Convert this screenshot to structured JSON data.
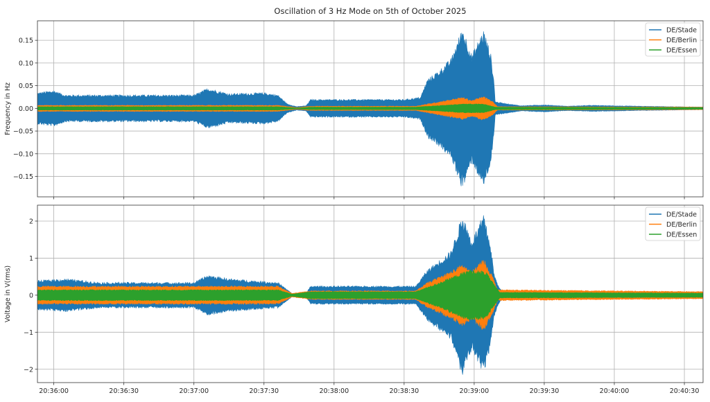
{
  "chart_data": [
    {
      "type": "line",
      "title": "Oscillation of 3 Hz Mode on 5th of October 2025",
      "xlabel": "",
      "ylabel": "Frequency in Hz",
      "x_unit": "seconds after 20:36:00",
      "xlim": [
        -7,
        278
      ],
      "ylim": [
        -0.195,
        0.193
      ],
      "grid": true,
      "legend_position": "top-right",
      "xticks": [
        0,
        30,
        60,
        90,
        120,
        150,
        180,
        210,
        240,
        270
      ],
      "yticks": [
        -0.15,
        -0.1,
        -0.05,
        0.0,
        0.05,
        0.1,
        0.15
      ],
      "ytick_labels": [
        "−0.15",
        "−0.10",
        "−0.05",
        "0.00",
        "0.05",
        "0.10",
        "0.15"
      ],
      "series_envelope_note": "amplitude envelope [t, ±amplitude] of a 3 Hz oscillation",
      "series": [
        {
          "name": "DE/Stade",
          "color": "#1f77b4",
          "envelope": [
            [
              -7,
              0.035
            ],
            [
              0,
              0.04
            ],
            [
              5,
              0.03
            ],
            [
              20,
              0.03
            ],
            [
              60,
              0.03
            ],
            [
              66,
              0.045
            ],
            [
              75,
              0.033
            ],
            [
              90,
              0.035
            ],
            [
              96,
              0.03
            ],
            [
              100,
              0.01
            ],
            [
              104,
              0.004
            ],
            [
              108,
              0.006
            ],
            [
              110,
              0.02
            ],
            [
              150,
              0.02
            ],
            [
              157,
              0.025
            ],
            [
              160,
              0.065
            ],
            [
              165,
              0.085
            ],
            [
              170,
              0.11
            ],
            [
              175,
              0.18
            ],
            [
              179,
              0.12
            ],
            [
              184,
              0.175
            ],
            [
              187,
              0.125
            ],
            [
              188.5,
              0.06
            ],
            [
              189,
              0.015
            ],
            [
              195,
              0.01
            ],
            [
              200,
              0.006
            ],
            [
              210,
              0.008
            ],
            [
              220,
              0.005
            ],
            [
              230,
              0.007
            ],
            [
              250,
              0.005
            ],
            [
              278,
              0.003
            ]
          ]
        },
        {
          "name": "DE/Berlin",
          "color": "#ff7f0e",
          "envelope": [
            [
              -7,
              0.007
            ],
            [
              96,
              0.007
            ],
            [
              104,
              0.002
            ],
            [
              110,
              0.005
            ],
            [
              155,
              0.005
            ],
            [
              175,
              0.025
            ],
            [
              179,
              0.018
            ],
            [
              184,
              0.027
            ],
            [
              188,
              0.015
            ],
            [
              190,
              0.004
            ],
            [
              278,
              0.003
            ]
          ]
        },
        {
          "name": "DE/Essen",
          "color": "#2ca02c",
          "envelope": [
            [
              -7,
              0.004
            ],
            [
              96,
              0.004
            ],
            [
              104,
              0.001
            ],
            [
              110,
              0.003
            ],
            [
              155,
              0.003
            ],
            [
              175,
              0.01
            ],
            [
              184,
              0.01
            ],
            [
              189,
              0.003
            ],
            [
              278,
              0.002
            ]
          ]
        }
      ]
    },
    {
      "type": "line",
      "title": "",
      "xlabel": "",
      "ylabel": "Voltage in V(rms)",
      "x_unit": "seconds after 20:36:00",
      "xlim": [
        -7,
        278
      ],
      "ylim": [
        -2.36,
        2.43
      ],
      "grid": true,
      "legend_position": "top-right",
      "xticks": [
        0,
        30,
        60,
        90,
        120,
        150,
        180,
        210,
        240,
        270
      ],
      "xtick_labels": [
        "20:36:00",
        "20:36:30",
        "20:37:00",
        "20:37:30",
        "20:38:00",
        "20:38:30",
        "20:39:00",
        "20:39:30",
        "20:40:00",
        "20:40:30"
      ],
      "yticks": [
        -2,
        -1,
        0,
        1,
        2
      ],
      "ytick_labels": [
        "−2",
        "−1",
        "0",
        "1",
        "2"
      ],
      "series": [
        {
          "name": "DE/Stade",
          "color": "#1f77b4",
          "envelope": [
            [
              -7,
              0.4
            ],
            [
              5,
              0.45
            ],
            [
              20,
              0.35
            ],
            [
              60,
              0.35
            ],
            [
              66,
              0.55
            ],
            [
              75,
              0.45
            ],
            [
              96,
              0.35
            ],
            [
              102,
              0.05
            ],
            [
              108,
              0.05
            ],
            [
              110,
              0.25
            ],
            [
              155,
              0.25
            ],
            [
              160,
              0.7
            ],
            [
              165,
              0.95
            ],
            [
              170,
              1.2
            ],
            [
              175,
              2.2
            ],
            [
              179,
              1.5
            ],
            [
              184,
              2.2
            ],
            [
              187,
              1.4
            ],
            [
              188.5,
              0.6
            ],
            [
              190,
              0.3
            ],
            [
              192,
              0.1
            ],
            [
              278,
              0.08
            ]
          ]
        },
        {
          "name": "DE/Berlin",
          "color": "#ff7f0e",
          "envelope": [
            [
              -7,
              0.25
            ],
            [
              96,
              0.25
            ],
            [
              102,
              0.05
            ],
            [
              110,
              0.12
            ],
            [
              155,
              0.12
            ],
            [
              160,
              0.35
            ],
            [
              170,
              0.65
            ],
            [
              175,
              0.85
            ],
            [
              179,
              0.65
            ],
            [
              184,
              1.0
            ],
            [
              188,
              0.5
            ],
            [
              190,
              0.15
            ],
            [
              278,
              0.1
            ]
          ]
        },
        {
          "name": "DE/Essen",
          "color": "#2ca02c",
          "envelope": [
            [
              -7,
              0.15
            ],
            [
              96,
              0.15
            ],
            [
              102,
              0.03
            ],
            [
              110,
              0.1
            ],
            [
              155,
              0.1
            ],
            [
              165,
              0.35
            ],
            [
              178,
              0.7
            ],
            [
              185,
              0.65
            ],
            [
              189,
              0.25
            ],
            [
              191,
              0.08
            ],
            [
              278,
              0.06
            ]
          ]
        }
      ]
    }
  ]
}
